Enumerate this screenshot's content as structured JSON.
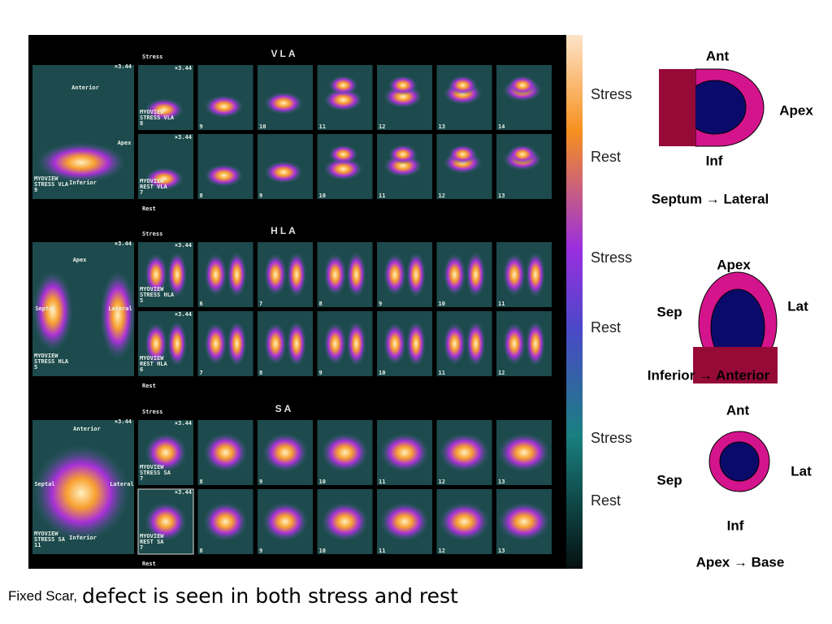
{
  "images": [
    {
      "title": "VLA",
      "stress": "Stress",
      "rest": "Rest",
      "scale": "×3.44",
      "main": {
        "labels": [
          "Anterior",
          "Apex",
          "Inferior"
        ],
        "caption": [
          "MYOVIEW",
          "STRESS VLA",
          "9"
        ]
      },
      "stress_row": {
        "caption": [
          "MYOVIEW",
          "STRESS VLA",
          "8"
        ],
        "frames": [
          "9",
          "10",
          "11",
          "12",
          "13",
          "14"
        ]
      },
      "rest_row": {
        "caption": [
          "MYOVIEW",
          "REST VLA",
          "7"
        ],
        "frames": [
          "8",
          "9",
          "10",
          "11",
          "12",
          "13"
        ]
      }
    },
    {
      "title": "HLA",
      "stress": "Stress",
      "rest": "Rest",
      "scale": "×3.44",
      "main": {
        "labels": [
          "Apex",
          "Septal",
          "Lateral"
        ],
        "caption": [
          "MYOVIEW",
          "STRESS HLA",
          "5"
        ]
      },
      "stress_row": {
        "caption": [
          "MYOVIEW",
          "STRESS HLA",
          "5"
        ],
        "frames": [
          "6",
          "7",
          "8",
          "9",
          "10",
          "11"
        ]
      },
      "rest_row": {
        "caption": [
          "MYOVIEW",
          "REST HLA",
          "6"
        ],
        "frames": [
          "7",
          "8",
          "9",
          "10",
          "11",
          "12"
        ]
      }
    },
    {
      "title": "SA",
      "stress": "Stress",
      "rest": "Rest",
      "scale": "×3.44",
      "main": {
        "labels": [
          "Anterior",
          "Septal",
          "Lateral",
          "Inferior"
        ],
        "caption": [
          "MYOVIEW",
          "STRESS SA",
          "11"
        ]
      },
      "stress_row": {
        "caption": [
          "MYOVIEW",
          "STRESS SA",
          "7"
        ],
        "frames": [
          "8",
          "9",
          "10",
          "11",
          "12",
          "13"
        ]
      },
      "rest_row": {
        "caption": [
          "MYOVIEW",
          "REST SA",
          "7"
        ],
        "frames": [
          "8",
          "9",
          "10",
          "11",
          "12",
          "13"
        ]
      }
    }
  ],
  "side_labels": [
    [
      "Stress",
      "Rest"
    ],
    [
      "Stress",
      "Rest"
    ],
    [
      "Stress",
      "Rest"
    ]
  ],
  "diagrams": [
    {
      "labels": [
        "Ant",
        "Apex",
        "Inf"
      ],
      "direction": "Septum → Lateral"
    },
    {
      "labels": [
        "Apex",
        "Sep",
        "Lat"
      ],
      "direction": "Inferior → Anterior"
    },
    {
      "labels": [
        "Ant",
        "Sep",
        "Lat",
        "Inf"
      ],
      "direction": "Apex → Base"
    }
  ],
  "caption": {
    "lead": "Fixed Scar,",
    "text": "defect is seen in both stress and rest"
  }
}
